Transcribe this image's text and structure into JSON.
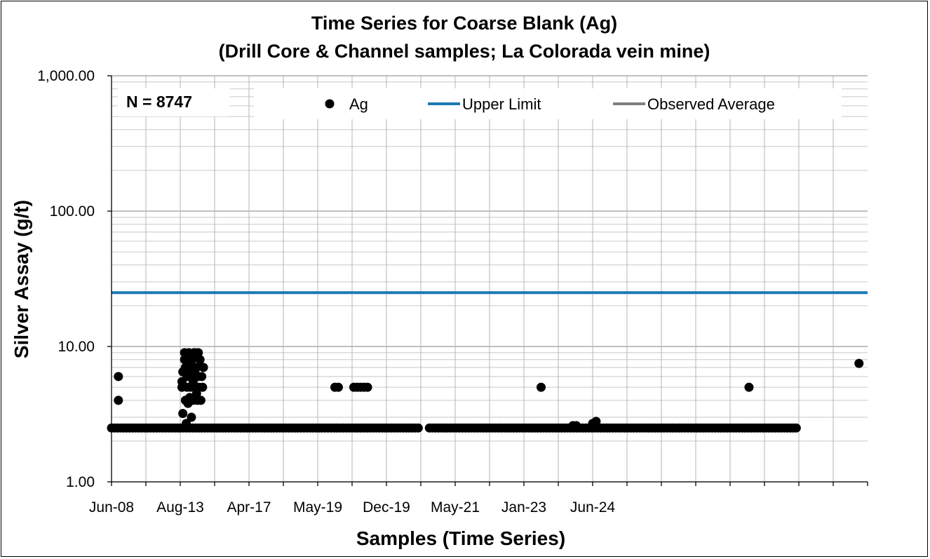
{
  "chart_data": {
    "type": "scatter",
    "title": "Time Series for Coarse Blank (Ag)",
    "subtitle": "(Drill Core & Channel samples; La Colorada vein mine)",
    "xlabel": "Samples (Time Series)",
    "ylabel": "Silver Assay (g/t)",
    "y_scale": "log",
    "ylim": [
      1,
      1000
    ],
    "y_ticks": [
      "1.00",
      "10.00",
      "100.00",
      "1,000.00"
    ],
    "x_tick_labels": [
      "Jun-08",
      "Aug-13",
      "Apr-17",
      "May-19",
      "Dec-19",
      "May-21",
      "Jan-23",
      "Jun-24"
    ],
    "grid": true,
    "legend_position": "top",
    "annotation": "N = 8747",
    "colors": {
      "ag": "#000000",
      "upper_limit": "#1a7ab5",
      "observed_average": "#808080"
    },
    "series": [
      {
        "name": "Ag",
        "kind": "points",
        "baseline_value": 2.5,
        "baseline_span": [
          [
            0,
            36
          ],
          [
            37,
            80
          ]
        ],
        "x_range": [
          0,
          88
        ],
        "points": [
          {
            "x": 0.8,
            "y": 6.0
          },
          {
            "x": 0.8,
            "y": 4.0
          },
          {
            "x": 8.2,
            "y": 5.0
          },
          {
            "x": 8.2,
            "y": 5.5
          },
          {
            "x": 8.3,
            "y": 6.5
          },
          {
            "x": 8.3,
            "y": 3.2
          },
          {
            "x": 8.5,
            "y": 9.0
          },
          {
            "x": 8.5,
            "y": 8.0
          },
          {
            "x": 8.6,
            "y": 7.0
          },
          {
            "x": 8.6,
            "y": 4.0
          },
          {
            "x": 8.7,
            "y": 2.7
          },
          {
            "x": 8.8,
            "y": 6.0
          },
          {
            "x": 8.8,
            "y": 5.0
          },
          {
            "x": 8.9,
            "y": 3.8
          },
          {
            "x": 9.0,
            "y": 9.0
          },
          {
            "x": 9.0,
            "y": 7.5
          },
          {
            "x": 9.1,
            "y": 6.0
          },
          {
            "x": 9.1,
            "y": 4.2
          },
          {
            "x": 9.2,
            "y": 5.0
          },
          {
            "x": 9.3,
            "y": 3.0
          },
          {
            "x": 9.4,
            "y": 8.0
          },
          {
            "x": 9.4,
            "y": 7.0
          },
          {
            "x": 9.5,
            "y": 5.5
          },
          {
            "x": 9.5,
            "y": 4.0
          },
          {
            "x": 9.7,
            "y": 9.0
          },
          {
            "x": 9.7,
            "y": 6.5
          },
          {
            "x": 9.8,
            "y": 5.0
          },
          {
            "x": 9.9,
            "y": 7.0
          },
          {
            "x": 10.0,
            "y": 4.0
          },
          {
            "x": 10.1,
            "y": 9.0
          },
          {
            "x": 10.1,
            "y": 6.0
          },
          {
            "x": 10.2,
            "y": 5.0
          },
          {
            "x": 10.3,
            "y": 8.0
          },
          {
            "x": 10.3,
            "y": 7.2
          },
          {
            "x": 10.4,
            "y": 4.0
          },
          {
            "x": 10.5,
            "y": 6.0
          },
          {
            "x": 10.6,
            "y": 5.0
          },
          {
            "x": 10.7,
            "y": 7.0
          },
          {
            "x": 9.6,
            "y": 9.0
          },
          {
            "x": 9.2,
            "y": 8.5
          },
          {
            "x": 8.9,
            "y": 6.8
          },
          {
            "x": 9.9,
            "y": 4.5
          },
          {
            "x": 26.0,
            "y": 5.0
          },
          {
            "x": 26.4,
            "y": 5.0
          },
          {
            "x": 28.2,
            "y": 5.0
          },
          {
            "x": 28.6,
            "y": 5.0
          },
          {
            "x": 29.0,
            "y": 5.0
          },
          {
            "x": 29.4,
            "y": 5.0
          },
          {
            "x": 29.8,
            "y": 5.0
          },
          {
            "x": 50.0,
            "y": 5.0
          },
          {
            "x": 53.7,
            "y": 2.6
          },
          {
            "x": 54.1,
            "y": 2.6
          },
          {
            "x": 56.0,
            "y": 2.7
          },
          {
            "x": 56.4,
            "y": 2.8
          },
          {
            "x": 74.2,
            "y": 5.0
          },
          {
            "x": 87.0,
            "y": 7.5
          }
        ]
      },
      {
        "name": "Upper Limit",
        "kind": "line",
        "y": 25
      },
      {
        "name": "Observed Average",
        "kind": "line"
      }
    ]
  }
}
